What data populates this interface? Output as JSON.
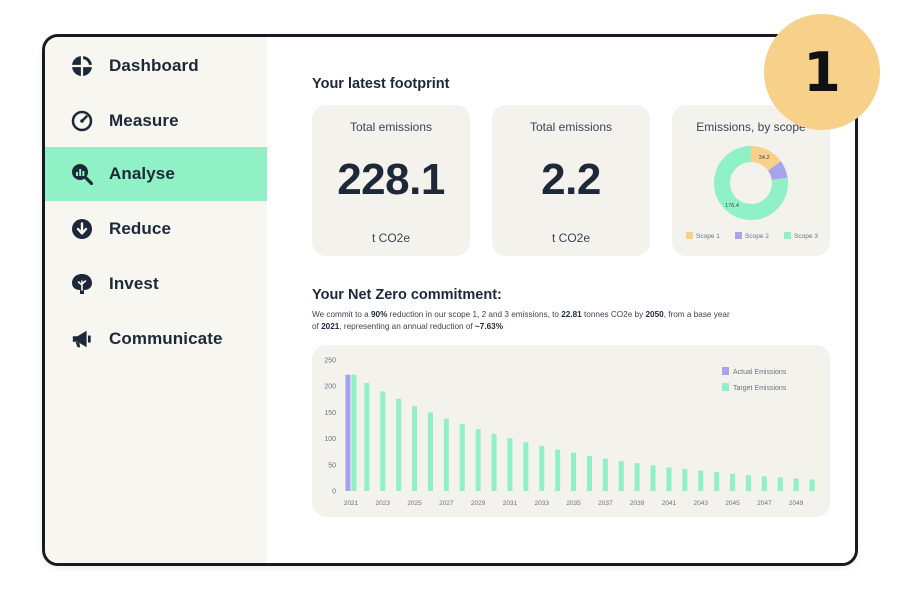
{
  "sidebar": {
    "items": [
      {
        "label": "Dashboard",
        "icon": "dashboard-icon"
      },
      {
        "label": "Measure",
        "icon": "gauge-icon"
      },
      {
        "label": "Analyse",
        "icon": "analyse-icon",
        "active": true
      },
      {
        "label": "Reduce",
        "icon": "arrow-down-circle-icon"
      },
      {
        "label": "Invest",
        "icon": "tree-icon"
      },
      {
        "label": "Communicate",
        "icon": "megaphone-icon"
      }
    ]
  },
  "footprint": {
    "title": "Your latest footprint",
    "cards": [
      {
        "label": "Total emissions",
        "value": "228.1",
        "unit": "t CO2e"
      },
      {
        "label": "Total emissions",
        "value": "2.2",
        "unit": "t CO2e"
      }
    ],
    "scope_card": {
      "label": "Emissions, by scope",
      "slices": [
        {
          "name": "Scope 1",
          "value": 34.2,
          "label": "34.2",
          "color": "#f7d08a"
        },
        {
          "name": "Scope 2",
          "value": 17.5,
          "label": "",
          "color": "#a9a3ee"
        },
        {
          "name": "Scope 3",
          "value": 176.4,
          "label": "176.4",
          "color": "#90f0c6"
        }
      ]
    }
  },
  "commitment": {
    "title": "Your Net Zero commitment:",
    "text": {
      "p1": "We commit to a ",
      "b1": "90%",
      "p2": " reduction in our scope 1, 2 and 3 emissions, to ",
      "b2": "22.81",
      "p3": " tonnes CO2e by ",
      "b3": "2050",
      "p4": ", from a base year of ",
      "b4": "2021",
      "p5": ", representing an annual reduction of ",
      "b5": "~7.63%"
    }
  },
  "colors": {
    "accent_green": "#90f0c6",
    "actual_purple": "#a9a3ee",
    "scope1_yellow": "#f7d08a",
    "badge": "#f7d08a"
  },
  "badge": {
    "number": "1"
  },
  "chart_data": {
    "type": "bar",
    "x": [
      2021,
      2022,
      2023,
      2024,
      2025,
      2026,
      2027,
      2028,
      2029,
      2030,
      2031,
      2032,
      2033,
      2034,
      2035,
      2036,
      2037,
      2038,
      2039,
      2040,
      2041,
      2042,
      2043,
      2044,
      2045,
      2046,
      2047,
      2048,
      2049,
      2050
    ],
    "xticks": [
      "2021",
      "2023",
      "2025",
      "2027",
      "2029",
      "2031",
      "2033",
      "2035",
      "2037",
      "2039",
      "2041",
      "2043",
      "2045",
      "2047",
      "2049"
    ],
    "series": [
      {
        "name": "Actual Emissions",
        "color": "#a9a3ee",
        "values": [
          222,
          null,
          null,
          null,
          null,
          null,
          null,
          null,
          null,
          null,
          null,
          null,
          null,
          null,
          null,
          null,
          null,
          null,
          null,
          null,
          null,
          null,
          null,
          null,
          null,
          null,
          null,
          null,
          null,
          null
        ]
      },
      {
        "name": "Target Emissions",
        "color": "#90f0c6",
        "values": [
          222,
          206,
          190,
          176,
          162,
          150,
          138,
          128,
          118,
          109,
          101,
          93,
          86,
          79,
          73,
          67,
          62,
          57,
          53,
          49,
          45,
          42,
          39,
          36,
          33,
          30,
          28,
          26,
          24,
          22
        ]
      }
    ],
    "ylim": [
      0,
      250
    ],
    "yticks": [
      0,
      50,
      100,
      150,
      200,
      250
    ],
    "legend": "top-right"
  }
}
